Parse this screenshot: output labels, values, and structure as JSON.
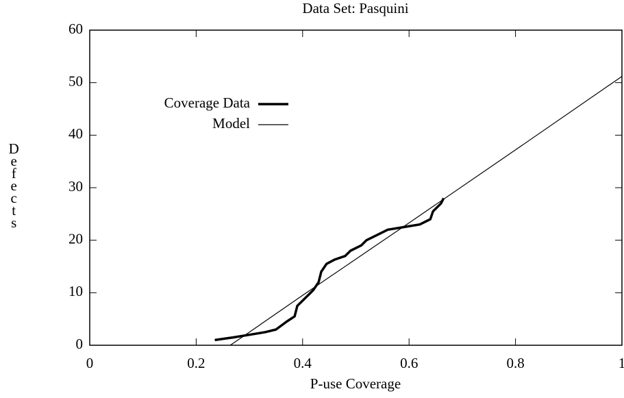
{
  "chart_data": {
    "type": "line",
    "title": "Data Set: Pasquini",
    "xlabel": "P-use Coverage",
    "ylabel": "Defects",
    "xlim": [
      0,
      1
    ],
    "ylim": [
      0,
      60
    ],
    "xticks": [
      0,
      0.2,
      0.4,
      0.6,
      0.8,
      1
    ],
    "yticks": [
      0,
      10,
      20,
      30,
      40,
      50,
      60
    ],
    "legend": "upper left",
    "grid": false,
    "series": [
      {
        "name": "Coverage Data",
        "color": "#000000",
        "width": 3.5,
        "x": [
          0.235,
          0.27,
          0.3,
          0.33,
          0.35,
          0.37,
          0.385,
          0.39,
          0.4,
          0.42,
          0.43,
          0.435,
          0.445,
          0.46,
          0.48,
          0.49,
          0.51,
          0.52,
          0.55,
          0.56,
          0.59,
          0.62,
          0.64,
          0.645,
          0.66,
          0.665
        ],
        "values": [
          1,
          1.5,
          2,
          2.5,
          3,
          4.5,
          5.5,
          7.5,
          8.5,
          10.5,
          12,
          14,
          15.5,
          16.3,
          17,
          18,
          19,
          20,
          21.5,
          22,
          22.5,
          23,
          24,
          25.5,
          27,
          28
        ]
      },
      {
        "name": "Model",
        "color": "#000000",
        "width": 1.2,
        "x": [
          0.264,
          0.3,
          0.4,
          0.6,
          0.8,
          1
        ],
        "values": [
          0,
          2.5,
          9.5,
          23.3,
          37.2,
          51.2
        ]
      }
    ]
  }
}
